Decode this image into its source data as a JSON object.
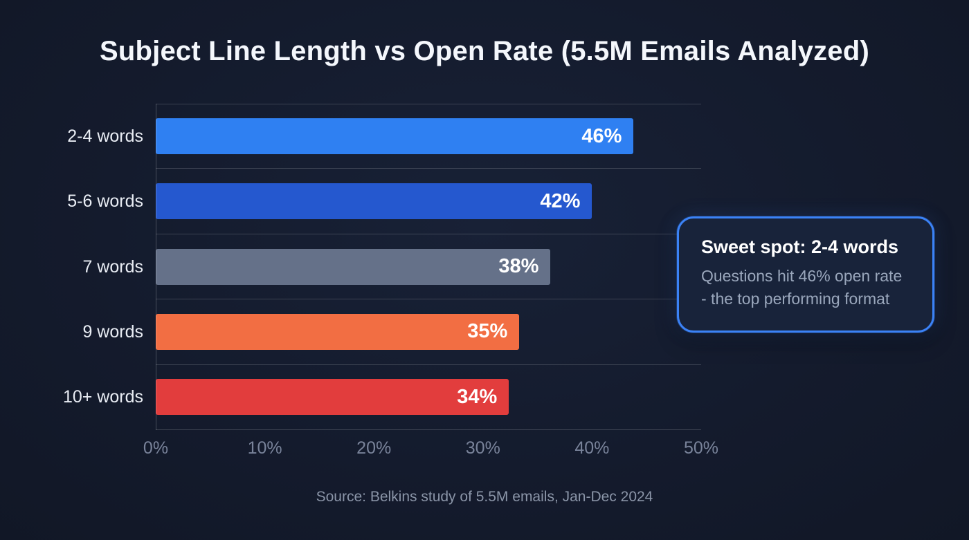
{
  "title": "Subject Line Length vs Open Rate (5.5M Emails Analyzed)",
  "source": "Source: Belkins study of 5.5M emails, Jan-Dec 2024",
  "callout": {
    "title": "Sweet spot: 2-4 words",
    "body": "Questions hit 46% open rate - the top performing format"
  },
  "colors": {
    "background": "#141b2d",
    "accent_blue": "#3b82f6",
    "gridline": "rgba(255,255,255,0.17)",
    "text_primary": "#f4f7fc",
    "text_muted": "#8b95a8"
  },
  "chart_data": {
    "type": "bar",
    "orientation": "horizontal",
    "title": "Subject Line Length vs Open Rate (5.5M Emails Analyzed)",
    "categories": [
      "2-4 words",
      "5-6 words",
      "7 words",
      "9 words",
      "10+ words"
    ],
    "values": [
      46,
      42,
      38,
      35,
      34
    ],
    "value_labels": [
      "46%",
      "42%",
      "38%",
      "35%",
      "34%"
    ],
    "bar_colors": [
      "#2f80f2",
      "#2558cf",
      "#657189",
      "#f26e43",
      "#e23d3d"
    ],
    "x_ticks": [
      "0%",
      "10%",
      "20%",
      "30%",
      "40%",
      "50%"
    ],
    "x_tick_values": [
      0,
      10,
      20,
      30,
      40,
      50
    ],
    "xlim": [
      0,
      50
    ],
    "xlabel": "",
    "ylabel": "",
    "grid": "horizontal row separators only",
    "legend": "none",
    "annotation": "Sweet spot: 2-4 words — Questions hit 46% open rate - the top performing format"
  }
}
